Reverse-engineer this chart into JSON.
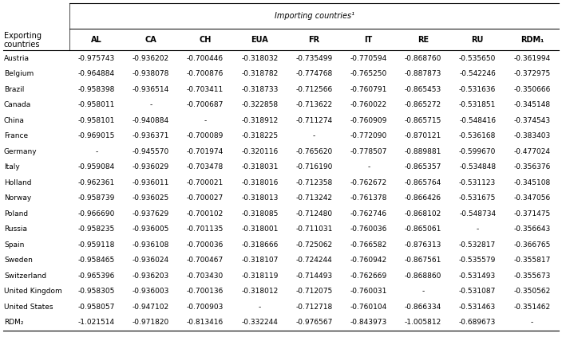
{
  "title_top": "Importing countries¹",
  "col_header_left1": "Exporting",
  "col_header_left2": "countries",
  "col_headers": [
    "AL",
    "CA",
    "CH",
    "EUA",
    "FR",
    "IT",
    "RE",
    "RU",
    "RDM₁"
  ],
  "row_labels": [
    "Austria",
    "Belgium",
    "Brazil",
    "Canada",
    "China",
    "France",
    "Germany",
    "Italy",
    "Holland",
    "Norway",
    "Poland",
    "Russia",
    "Spain",
    "Sweden",
    "Switzerland",
    "United Kingdom",
    "United States",
    "RDM₂"
  ],
  "table_data": [
    [
      "-0.975743",
      "-0.936202",
      "-0.700446",
      "-0.318032",
      "-0.735499",
      "-0.770594",
      "-0.868760",
      "-0.535650",
      "-0.361994"
    ],
    [
      "-0.964884",
      "-0.938078",
      "-0.700876",
      "-0.318782",
      "-0.774768",
      "-0.765250",
      "-0.887873",
      "-0.542246",
      "-0.372975"
    ],
    [
      "-0.958398",
      "-0.936514",
      "-0.703411",
      "-0.318733",
      "-0.712566",
      "-0.760791",
      "-0.865453",
      "-0.531636",
      "-0.350666"
    ],
    [
      "-0.958011",
      "-",
      "-0.700687",
      "-0.322858",
      "-0.713622",
      "-0.760022",
      "-0.865272",
      "-0.531851",
      "-0.345148"
    ],
    [
      "-0.958101",
      "-0.940884",
      "-",
      "-0.318912",
      "-0.711274",
      "-0.760909",
      "-0.865715",
      "-0.548416",
      "-0.374543"
    ],
    [
      "-0.969015",
      "-0.936371",
      "-0.700089",
      "-0.318225",
      "-",
      "-0.772090",
      "-0.870121",
      "-0.536168",
      "-0.383403"
    ],
    [
      "-",
      "-0.945570",
      "-0.701974",
      "-0.320116",
      "-0.765620",
      "-0.778507",
      "-0.889881",
      "-0.599670",
      "-0.477024"
    ],
    [
      "-0.959084",
      "-0.936029",
      "-0.703478",
      "-0.318031",
      "-0.716190",
      "-",
      "-0.865357",
      "-0.534848",
      "-0.356376"
    ],
    [
      "-0.962361",
      "-0.936011",
      "-0.700021",
      "-0.318016",
      "-0.712358",
      "-0.762672",
      "-0.865764",
      "-0.531123",
      "-0.345108"
    ],
    [
      "-0.958739",
      "-0.936025",
      "-0.700027",
      "-0.318013",
      "-0.713242",
      "-0.761378",
      "-0.866426",
      "-0.531675",
      "-0.347056"
    ],
    [
      "-0.966690",
      "-0.937629",
      "-0.700102",
      "-0.318085",
      "-0.712480",
      "-0.762746",
      "-0.868102",
      "-0.548734",
      "-0.371475"
    ],
    [
      "-0.958235",
      "-0.936005",
      "-0.701135",
      "-0.318001",
      "-0.711031",
      "-0.760036",
      "-0.865061",
      "-",
      "-0.356643"
    ],
    [
      "-0.959118",
      "-0.936108",
      "-0.700036",
      "-0.318666",
      "-0.725062",
      "-0.766582",
      "-0.876313",
      "-0.532817",
      "-0.366765"
    ],
    [
      "-0.958465",
      "-0.936024",
      "-0.700467",
      "-0.318107",
      "-0.724244",
      "-0.760942",
      "-0.867561",
      "-0.535579",
      "-0.355817"
    ],
    [
      "-0.965396",
      "-0.936203",
      "-0.703430",
      "-0.318119",
      "-0.714493",
      "-0.762669",
      "-0.868860",
      "-0.531493",
      "-0.355673"
    ],
    [
      "-0.958305",
      "-0.936003",
      "-0.700136",
      "-0.318012",
      "-0.712075",
      "-0.760031",
      "-",
      "-0.531087",
      "-0.350562"
    ],
    [
      "-0.958057",
      "-0.947102",
      "-0.700903",
      "-",
      "-0.712718",
      "-0.760104",
      "-0.866334",
      "-0.531463",
      "-0.351462"
    ],
    [
      "-1.021514",
      "-0.971820",
      "-0.813416",
      "-0.332244",
      "-0.976567",
      "-0.843973",
      "-1.005812",
      "-0.689673",
      "-"
    ]
  ],
  "bg_color": "#ffffff",
  "text_color": "#000000",
  "line_color": "#000000",
  "font_size": 6.5,
  "header_font_size": 7.0,
  "fig_width": 7.04,
  "fig_height": 4.23,
  "dpi": 100
}
